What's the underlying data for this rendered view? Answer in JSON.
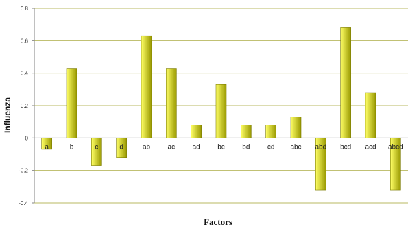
{
  "chart_data": {
    "type": "bar",
    "xlabel": "Factors",
    "ylabel": "Influenza",
    "categories": [
      "a",
      "b",
      "c",
      "d",
      "ab",
      "ac",
      "ad",
      "bc",
      "bd",
      "cd",
      "abc",
      "abd",
      "bcd",
      "acd",
      "abcd"
    ],
    "values": [
      -0.07,
      0.43,
      -0.17,
      -0.12,
      0.63,
      0.43,
      0.08,
      0.33,
      0.08,
      0.08,
      0.13,
      -0.32,
      0.68,
      0.28,
      -0.32
    ],
    "ylim": [
      -0.4,
      0.8
    ],
    "yticks": [
      -0.4,
      -0.2,
      0,
      0.2,
      0.4,
      0.6,
      0.8
    ],
    "ytick_labels": [
      "-0.4",
      "-0.2",
      "0",
      "0.2",
      "0.4",
      "0.6",
      "0.8"
    ],
    "grid": true,
    "colors": {
      "bar_light": "#ffff66",
      "bar_dark": "#999900",
      "bar_stroke": "#7a7a00",
      "grid": "#b8b860",
      "axis": "#808080"
    }
  }
}
